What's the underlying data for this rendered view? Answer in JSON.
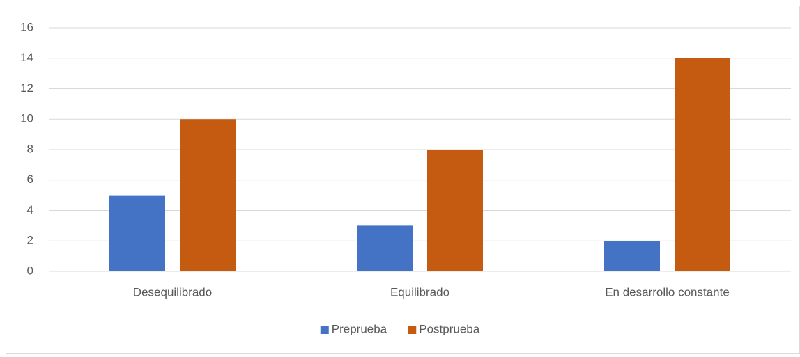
{
  "chart_data": {
    "type": "bar",
    "categories": [
      "Desequilibrado",
      "Equilibrado",
      "En desarrollo constante"
    ],
    "series": [
      {
        "name": "Preprueba",
        "color": "#4472c4",
        "values": [
          5,
          3,
          2
        ]
      },
      {
        "name": "Postprueba",
        "color": "#c55a11",
        "values": [
          10,
          8,
          14
        ]
      }
    ],
    "ylim": [
      0,
      16
    ],
    "yticks": [
      0,
      2,
      4,
      6,
      8,
      10,
      12,
      14,
      16
    ],
    "grid": true,
    "legend": "bottom"
  }
}
